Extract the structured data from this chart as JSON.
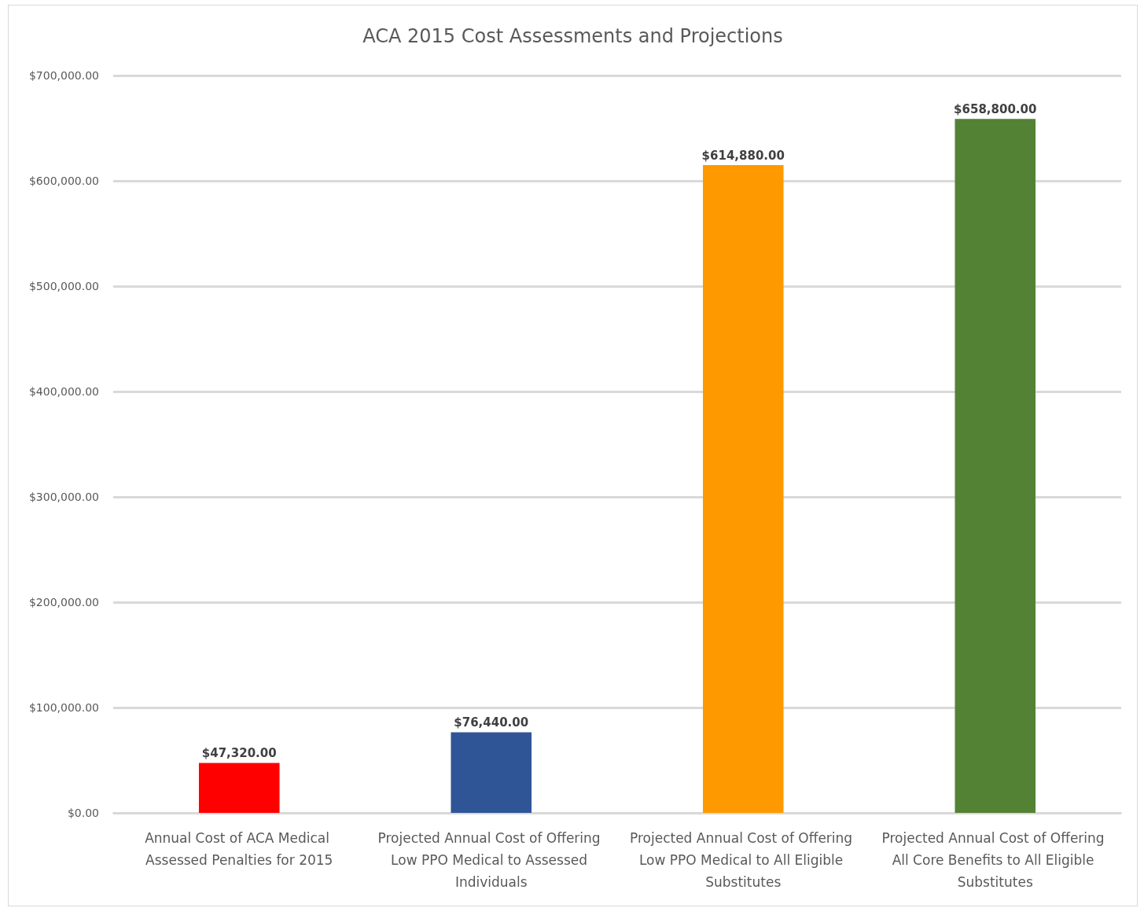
{
  "chart_data": {
    "type": "bar",
    "title": "ACA 2015 Cost Assessments and Projections",
    "categories": [
      "Annual Cost of ACA Medical Assessed Penalties for 2015",
      "Projected Annual Cost of Offering Low PPO Medical to Assessed Individuals",
      "Projected Annual Cost of Offering Low PPO Medical to All Eligible Substitutes",
      "Projected Annual Cost of Offering All Core Benefits to All Eligible Substitutes"
    ],
    "values": [
      47320,
      76440,
      614880,
      658800
    ],
    "colors": [
      "#ff0000",
      "#2f5597",
      "#ff9900",
      "#548235"
    ],
    "value_labels": [
      "$47,320.00",
      "$76,440.00",
      "$614,880.00",
      "$658,800.00"
    ],
    "ylim": [
      0,
      700000
    ],
    "yticks": [
      {
        "value": 0,
        "label": "$0.00"
      },
      {
        "value": 100000,
        "label": "$100,000.00"
      },
      {
        "value": 200000,
        "label": "$200,000.00"
      },
      {
        "value": 300000,
        "label": "$300,000.00"
      },
      {
        "value": 400000,
        "label": "$400,000.00"
      },
      {
        "value": 500000,
        "label": "$500,000.00"
      },
      {
        "value": 600000,
        "label": "$600,000.00"
      },
      {
        "value": 700000,
        "label": "$700,000.00"
      }
    ],
    "grid": "y"
  }
}
